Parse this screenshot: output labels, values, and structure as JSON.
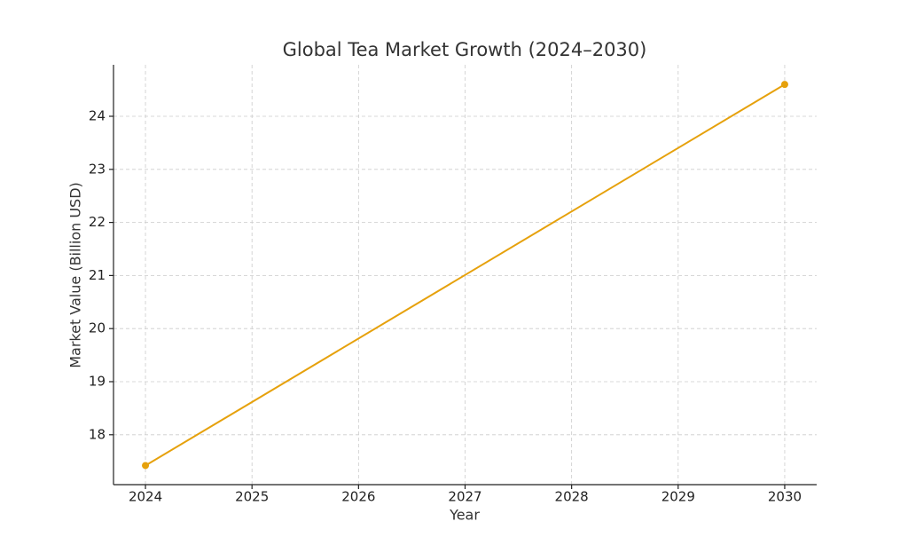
{
  "chart_data": {
    "type": "line",
    "title": "Global Tea Market Growth (2024–2030)",
    "x_label": "Year",
    "y_label": "Market Value (Billion USD)",
    "x": [
      2024,
      2030
    ],
    "series": [
      {
        "name": "Market Value",
        "color": "#e6a10c",
        "values": [
          17.42,
          24.6
        ]
      }
    ],
    "xlim": [
      2023.7,
      2030.3
    ],
    "xticks": [
      2024,
      2025,
      2026,
      2027,
      2028,
      2029,
      2030
    ],
    "ylim": [
      17.06,
      24.97
    ],
    "yticks": [
      18,
      19,
      20,
      21,
      22,
      23,
      24
    ],
    "grid": true
  }
}
